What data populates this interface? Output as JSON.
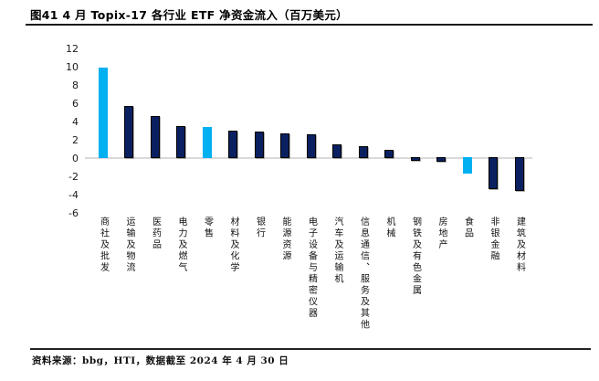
{
  "header": {
    "title": "图41 4 月 Topix-17 各行业 ETF 净资金流入（百万美元）"
  },
  "footer": {
    "source": "资料来源：bbg，HTI，数据截至 2024 年 4 月 30 日"
  },
  "colors": {
    "highlight_bar": "#00B0F0",
    "primary_bar": "#0A2060",
    "bar_border": "#000000",
    "zero_line": "#D9D9D9",
    "rule": "#1A1A1A"
  },
  "chart_data": {
    "type": "bar",
    "title": "图41 4 月 Topix-17 各行业 ETF 净资金流入（百万美元）",
    "xlabel": "",
    "ylabel": "",
    "unit": "百万美元",
    "categories": [
      "商社及批发",
      "运输及物流",
      "医药品",
      "电力及燃气",
      "零售",
      "材料及化学",
      "银行",
      "能源资源",
      "电子设备与精密仪器",
      "汽车及运输机",
      "信息通信、服务及其他",
      "机械",
      "钢铁及有色金属",
      "房地产",
      "食品",
      "非银金融",
      "建筑及材料"
    ],
    "values": [
      9.9,
      5.7,
      4.6,
      3.5,
      3.4,
      3.0,
      2.9,
      2.7,
      2.6,
      1.5,
      1.3,
      0.9,
      -0.4,
      -0.5,
      -1.8,
      -3.5,
      -3.7
    ],
    "highlight_indices": [
      0,
      4,
      14
    ],
    "yticks": [
      12,
      10,
      8,
      6,
      4,
      2,
      0,
      -2,
      -4,
      -6
    ],
    "ylim": [
      -6,
      12
    ],
    "grid": false,
    "legend": "none"
  }
}
